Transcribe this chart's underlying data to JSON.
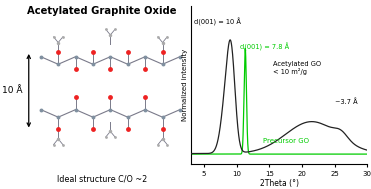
{
  "title": "Acetylated Graphite Oxide",
  "subtitle": "Ideal structure C/O ~2",
  "arrow_label": "10 Å",
  "xrd_xlabel": "2Theta (°)",
  "xrd_ylabel": "Normalized intensity",
  "annotation_black_1": "d(001) = 10 Å",
  "annotation_green_1": "d(001) = 7.8 Å",
  "annotation_black_2": "Acetylated GO\n< 10 m²/g",
  "annotation_black_3": "~3.7 Å",
  "annotation_green_2": "Precursor GO",
  "xrd_xlim": [
    3,
    30
  ],
  "xrd_ylim": [
    -0.05,
    1.25
  ],
  "background_color": "#ffffff",
  "black_line_color": "#222222",
  "green_line_color": "#00cc00"
}
